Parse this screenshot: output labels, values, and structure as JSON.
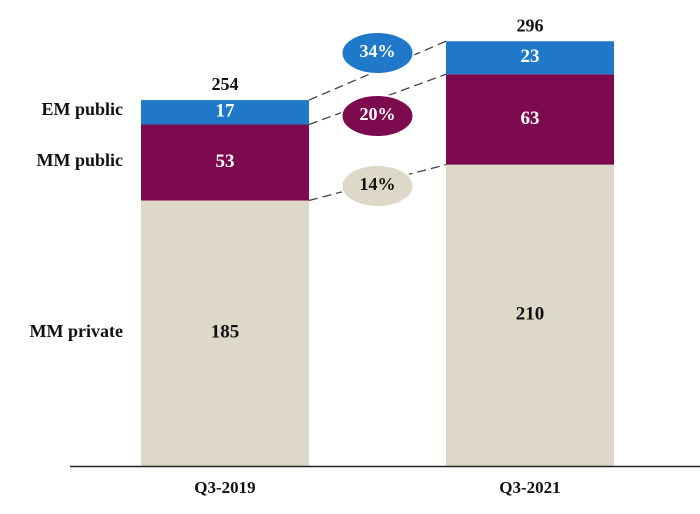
{
  "chart_data": {
    "type": "bar",
    "stacked": true,
    "title": "",
    "xlabel": "",
    "ylabel": "",
    "ylim": [
      0,
      310
    ],
    "grid": false,
    "categories": [
      "Q3-2019",
      "Q3-2021"
    ],
    "totals": [
      "254",
      "296"
    ],
    "series": [
      {
        "name": "MM private",
        "values": [
          185,
          210
        ],
        "color": "#ddd8c8",
        "text_color": "#111111"
      },
      {
        "name": "MM public",
        "values": [
          53,
          63
        ],
        "color": "#7d0a4e",
        "text_color": "#ffffff"
      },
      {
        "name": "EM public",
        "values": [
          17,
          23
        ],
        "color": "#1f78c8",
        "text_color": "#ffffff"
      }
    ],
    "growth_annotations": [
      {
        "series": "EM public",
        "label": "34%",
        "color": "#1f78c8",
        "text_color": "#ffffff"
      },
      {
        "series": "MM public",
        "label": "20%",
        "color": "#7d0a4e",
        "text_color": "#ffffff"
      },
      {
        "series": "MM private",
        "label": "14%",
        "color": "#ddd8c8",
        "text_color": "#111111"
      }
    ]
  }
}
